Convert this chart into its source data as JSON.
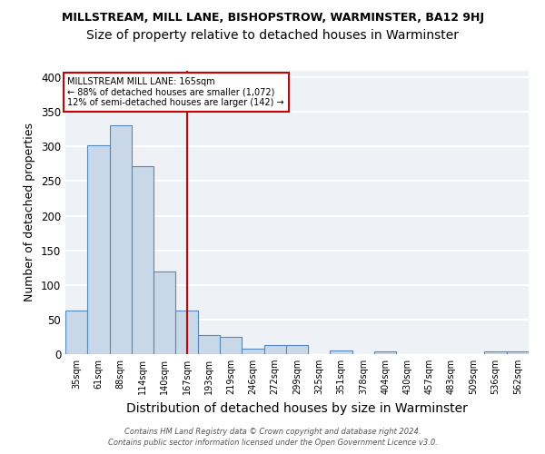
{
  "title": "MILLSTREAM, MILL LANE, BISHOPSTROW, WARMINSTER, BA12 9HJ",
  "subtitle": "Size of property relative to detached houses in Warminster",
  "xlabel": "Distribution of detached houses by size in Warminster",
  "ylabel": "Number of detached properties",
  "categories": [
    "35sqm",
    "61sqm",
    "88sqm",
    "114sqm",
    "140sqm",
    "167sqm",
    "193sqm",
    "219sqm",
    "246sqm",
    "272sqm",
    "299sqm",
    "325sqm",
    "351sqm",
    "378sqm",
    "404sqm",
    "430sqm",
    "457sqm",
    "483sqm",
    "509sqm",
    "536sqm",
    "562sqm"
  ],
  "values": [
    63,
    302,
    330,
    272,
    120,
    63,
    27,
    25,
    8,
    13,
    13,
    0,
    5,
    0,
    4,
    0,
    0,
    0,
    0,
    4,
    4
  ],
  "bar_color": "#c8d8e8",
  "bar_edge_color": "#5588bb",
  "vline_x_index": 5,
  "vline_color": "#cc0000",
  "annotation_line1": "MILLSTREAM MILL LANE: 165sqm",
  "annotation_line2": "← 88% of detached houses are smaller (1,072)",
  "annotation_line3": "12% of semi-detached houses are larger (142) →",
  "annotation_box_color": "white",
  "annotation_box_edge_color": "#cc0000",
  "ylim": [
    0,
    410
  ],
  "yticks": [
    0,
    50,
    100,
    150,
    200,
    250,
    300,
    350,
    400
  ],
  "background_color": "#eef2f7",
  "grid_color": "white",
  "footer_line1": "Contains HM Land Registry data © Crown copyright and database right 2024.",
  "footer_line2": "Contains public sector information licensed under the Open Government Licence v3.0.",
  "title_fontsize": 9,
  "subtitle_fontsize": 10,
  "xlabel_fontsize": 10,
  "ylabel_fontsize": 9
}
